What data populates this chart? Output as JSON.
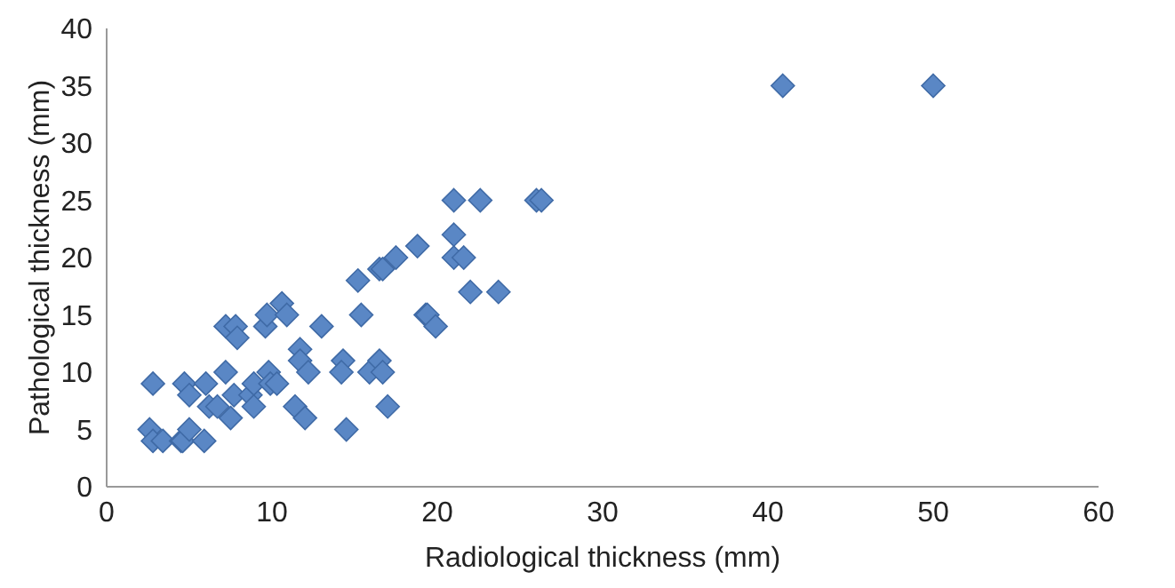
{
  "chart_data": {
    "type": "scatter",
    "xlabel": "Radiological thickness (mm)",
    "ylabel": "Pathological thickness (mm)",
    "x": [
      2.6,
      2.8,
      3.4,
      4.5,
      4.6,
      5.9,
      2.8,
      4.7,
      5,
      5,
      6,
      6.2,
      6.7,
      7.2,
      7.2,
      7.5,
      7.7,
      7.8,
      7.9,
      8.7,
      8.9,
      8.9,
      9.6,
      9.7,
      9.8,
      9.9,
      10.3,
      10.6,
      10.9,
      11.4,
      12,
      11.7,
      11.7,
      12.2,
      13,
      14.3,
      14.2,
      14.5,
      15.2,
      15.4,
      15.9,
      16.5,
      16.7,
      16.5,
      16.7,
      17,
      17.5,
      18.8,
      19.3,
      19.4,
      19.9,
      21,
      21,
      21,
      21.6,
      22,
      22.6,
      23.7,
      26,
      26.3,
      40.9,
      50
    ],
    "values": [
      5,
      4,
      4,
      4,
      4,
      4,
      9,
      9,
      8,
      5,
      9,
      7,
      7,
      14,
      10,
      6,
      8,
      14,
      13,
      8,
      9,
      7,
      14,
      15,
      10,
      9,
      9,
      16,
      15,
      7,
      6,
      12,
      11,
      10,
      14,
      11,
      10,
      5,
      18,
      15,
      10,
      11,
      10,
      19,
      19,
      7,
      20,
      21,
      15,
      15,
      14,
      25,
      22,
      20,
      20,
      17,
      25,
      17,
      25,
      25,
      35,
      35
    ],
    "color": "#5a87c5",
    "marker": "diamond",
    "grid": false,
    "xlim": [
      0,
      60
    ],
    "xticks": [
      0,
      10,
      20,
      30,
      40,
      50,
      60
    ],
    "ylim": [
      0,
      40
    ],
    "yticks": [
      0,
      5,
      10,
      15,
      20,
      25,
      30,
      35,
      40
    ]
  }
}
